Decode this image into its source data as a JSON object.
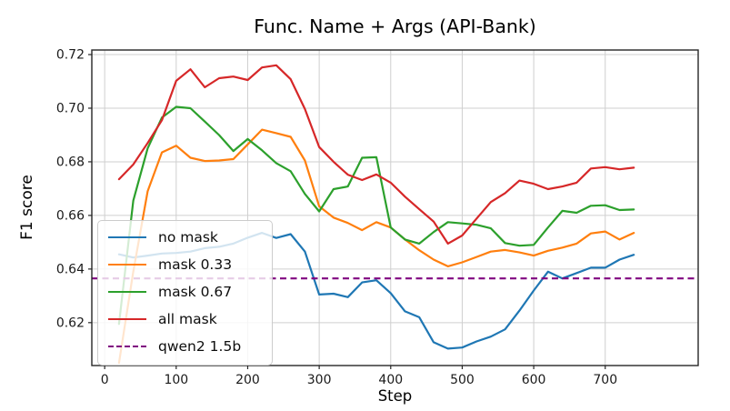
{
  "chart_data": {
    "type": "line",
    "title": "Func. Name + Args (API-Bank)",
    "xlabel": "Step",
    "ylabel": "F1 score",
    "grid": true,
    "legend_position": "center left",
    "xlim": [
      -18,
      830
    ],
    "ylim": [
      0.604,
      0.7217
    ],
    "xticks": [
      0,
      100,
      200,
      300,
      400,
      500,
      600,
      700
    ],
    "yticks": [
      "0.62",
      "0.64",
      "0.66",
      "0.68",
      "0.70",
      "0.72"
    ],
    "x": [
      20,
      40,
      60,
      80,
      100,
      120,
      140,
      160,
      180,
      200,
      220,
      240,
      260,
      280,
      300,
      320,
      340,
      360,
      380,
      400,
      420,
      440,
      460,
      480,
      500,
      520,
      540,
      560,
      580,
      600,
      620,
      640,
      660,
      680,
      700,
      720,
      740
    ],
    "series": [
      {
        "name": "no mask",
        "color": "#1f77b4",
        "style": "solid",
        "values": [
          0.6455,
          0.6443,
          0.645,
          0.6458,
          0.646,
          0.6465,
          0.6478,
          0.6483,
          0.6495,
          0.6517,
          0.6535,
          0.6516,
          0.653,
          0.6465,
          0.6305,
          0.6308,
          0.6295,
          0.635,
          0.6358,
          0.631,
          0.6242,
          0.622,
          0.6127,
          0.6103,
          0.6107,
          0.613,
          0.6148,
          0.6175,
          0.6245,
          0.632,
          0.639,
          0.6365,
          0.6385,
          0.6405,
          0.6405,
          0.6435,
          0.6453
        ]
      },
      {
        "name": "mask 0.33",
        "color": "#ff7f0e",
        "style": "solid",
        "values": [
          0.605,
          0.639,
          0.669,
          0.6835,
          0.686,
          0.6815,
          0.6803,
          0.6805,
          0.681,
          0.6865,
          0.692,
          0.6907,
          0.6893,
          0.6805,
          0.6634,
          0.6592,
          0.6572,
          0.6545,
          0.6575,
          0.6555,
          0.651,
          0.647,
          0.6435,
          0.641,
          0.6425,
          0.6445,
          0.6465,
          0.6471,
          0.6462,
          0.645,
          0.6468,
          0.648,
          0.6495,
          0.6533,
          0.654,
          0.651,
          0.6535
        ]
      },
      {
        "name": "mask 0.67",
        "color": "#2ca02c",
        "style": "solid",
        "values": [
          0.6195,
          0.6655,
          0.685,
          0.6965,
          0.7005,
          0.7,
          0.695,
          0.69,
          0.684,
          0.6885,
          0.6843,
          0.6795,
          0.6765,
          0.668,
          0.6615,
          0.6698,
          0.6708,
          0.6815,
          0.6817,
          0.6555,
          0.651,
          0.6495,
          0.6538,
          0.6575,
          0.657,
          0.6565,
          0.6552,
          0.6497,
          0.6487,
          0.649,
          0.6555,
          0.6617,
          0.661,
          0.6636,
          0.6638,
          0.662,
          0.6622
        ]
      },
      {
        "name": "all mask",
        "color": "#d62728",
        "style": "solid",
        "values": [
          0.6735,
          0.679,
          0.687,
          0.6955,
          0.7102,
          0.7145,
          0.7078,
          0.7112,
          0.7118,
          0.7105,
          0.7152,
          0.716,
          0.7108,
          0.6997,
          0.6855,
          0.68,
          0.6752,
          0.6732,
          0.6753,
          0.6722,
          0.667,
          0.6623,
          0.6577,
          0.6495,
          0.6525,
          0.6588,
          0.665,
          0.6683,
          0.673,
          0.6718,
          0.6698,
          0.6708,
          0.6722,
          0.6775,
          0.678,
          0.6772,
          0.6778
        ]
      },
      {
        "name": "qwen2 1.5b",
        "color": "#800080",
        "style": "dashed",
        "constant": 0.6365
      }
    ],
    "colors": {
      "grid": "#cfcfcf",
      "spine": "#262626",
      "background": "#ffffff"
    }
  }
}
